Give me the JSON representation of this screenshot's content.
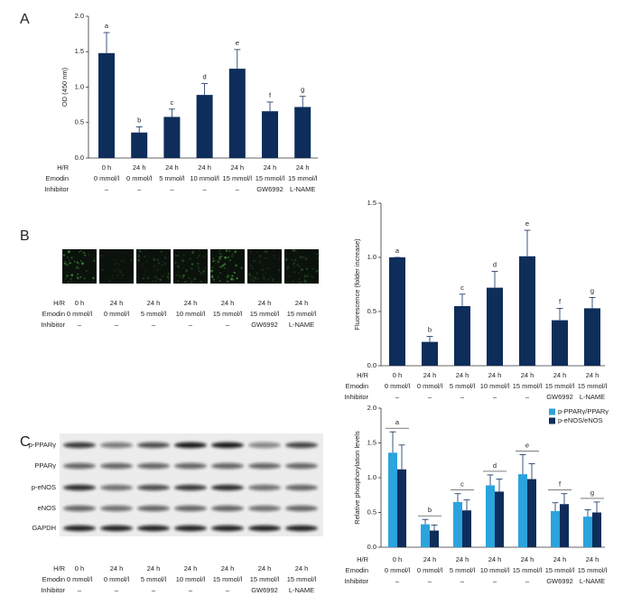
{
  "chart_data": [
    {
      "type": "bar",
      "panel": "A",
      "ylabel": "OD (450 nm)",
      "color": "#0e2d5b",
      "ylim": [
        0,
        2
      ],
      "yticks": [
        {
          "value": 0,
          "label": "0.0"
        },
        0.5,
        {
          "value": 1,
          "label": "1.0"
        },
        1.5,
        {
          "value": 2,
          "label": "2.0"
        }
      ],
      "condition_labels": [
        "H/R",
        "Emodin",
        "Inhibitor"
      ],
      "categories": [
        [
          "0 h",
          "0 mmol/l",
          "–"
        ],
        [
          "24 h",
          "0 mmol/l",
          "–"
        ],
        [
          "24 h",
          "5 mmol/l",
          "–"
        ],
        [
          "24 h",
          "10 mmol/l",
          "–"
        ],
        [
          "24 h",
          "15 mmol/l",
          "–"
        ],
        [
          "24 h",
          "15 mmol/l",
          "GW6992"
        ],
        [
          "24 h",
          "15 mmol/l",
          "L-NAME"
        ]
      ],
      "values": [
        1.48,
        0.36,
        0.58,
        0.89,
        1.26,
        0.66,
        0.72
      ],
      "errors": [
        0.29,
        0.08,
        0.11,
        0.16,
        0.27,
        0.13,
        0.15
      ],
      "annotations": [
        "a",
        "b",
        "c",
        "d",
        "e",
        "f",
        "g"
      ]
    },
    {
      "type": "bar",
      "panel": "B",
      "ylabel": "Fluorescence (folder increase)",
      "color": "#0e2d5b",
      "ylim": [
        0,
        1.5
      ],
      "yticks": [
        {
          "value": 0,
          "label": "0.0"
        },
        0.5,
        {
          "value": 1,
          "label": "1.0"
        },
        1.5
      ],
      "condition_labels": [
        "H/R",
        "Emodin",
        "Inhibitor"
      ],
      "categories": [
        [
          "0 h",
          "0 mmol/l",
          "–"
        ],
        [
          "24 h",
          "0 mmol/l",
          "–"
        ],
        [
          "24 h",
          "5 mmol/l",
          "–"
        ],
        [
          "24 h",
          "10 mmol/l",
          "–"
        ],
        [
          "24 h",
          "15 mmol/l",
          "–"
        ],
        [
          "24 h",
          "15 mmol/l",
          "GW6992"
        ],
        [
          "24 h",
          "15 mmol/l",
          "L-NAME"
        ]
      ],
      "values": [
        1.0,
        0.22,
        0.55,
        0.72,
        1.01,
        0.42,
        0.53
      ],
      "errors": [
        0,
        0.05,
        0.11,
        0.15,
        0.24,
        0.11,
        0.1
      ],
      "annotations": [
        "a",
        "b",
        "c",
        "d",
        "e",
        "f",
        "g"
      ],
      "image_strip": {
        "condition_labels": [
          "H/R",
          "Emodin",
          "Inhibitor"
        ],
        "categories": [
          [
            "0 h",
            "0 mmol/l",
            "–"
          ],
          [
            "24 h",
            "0 mmol/l",
            "–"
          ],
          [
            "24 h",
            "5 mmol/l",
            "–"
          ],
          [
            "24 h",
            "10 mmol/l",
            "–"
          ],
          [
            "24 h",
            "15 mmol/l",
            "–"
          ],
          [
            "24 h",
            "15 mmol/l",
            "GW6992"
          ],
          [
            "24 h",
            "15 mmol/l",
            "L-NAME"
          ]
        ]
      }
    },
    {
      "type": "grouped_bar",
      "panel": "C",
      "ylabel": "Relative phosphorylation levels",
      "legend": "upper right",
      "ylim": [
        0,
        2
      ],
      "yticks": [
        {
          "value": 0,
          "label": "0.0"
        },
        0.5,
        {
          "value": 1,
          "label": "1.0"
        },
        1.5,
        {
          "value": 2,
          "label": "2.0"
        }
      ],
      "condition_labels": [
        "H/R",
        "Emodin",
        "Inhibitor"
      ],
      "categories": [
        [
          "0 h",
          "0 mmol/l",
          "–"
        ],
        [
          "24 h",
          "0 mmol/l",
          "–"
        ],
        [
          "24 h",
          "5 mmol/l",
          "–"
        ],
        [
          "24 h",
          "10 mmol/l",
          "–"
        ],
        [
          "24 h",
          "15 mmol/l",
          "–"
        ],
        [
          "24 h",
          "15 mmol/l",
          "GW6992"
        ],
        [
          "24 h",
          "15 mmol/l",
          "L-NAME"
        ]
      ],
      "series": [
        {
          "name": "p-PPARγ/PPARγ",
          "color": "#2ba3dc",
          "values": [
            1.36,
            0.33,
            0.65,
            0.89,
            1.05,
            0.52,
            0.44
          ],
          "errors": [
            0.3,
            0.07,
            0.12,
            0.15,
            0.28,
            0.12,
            0.1
          ]
        },
        {
          "name": "p-eNOS/eNOS",
          "color": "#0e2d5b",
          "values": [
            1.12,
            0.24,
            0.53,
            0.8,
            0.98,
            0.62,
            0.5
          ],
          "errors": [
            0.35,
            0.08,
            0.15,
            0.18,
            0.22,
            0.15,
            0.15
          ]
        }
      ],
      "annotations": [
        "a",
        "b",
        "c",
        "d",
        "e",
        "f",
        "g"
      ],
      "blot": {
        "bands": [
          "p-PPARγ",
          "PPARγ",
          "p-eNOS",
          "eNOS",
          "GAPDH"
        ],
        "condition_labels": [
          "H/R",
          "Emodin",
          "Inhibitor"
        ],
        "categories": [
          [
            "0 h",
            "0 mmol/l",
            "–"
          ],
          [
            "24 h",
            "0 mmol/l",
            "–"
          ],
          [
            "24 h",
            "5 mmol/l",
            "–"
          ],
          [
            "24 h",
            "10 mmol/l",
            "–"
          ],
          [
            "24 h",
            "15 mmol/l",
            "–"
          ],
          [
            "24 h",
            "15 mmol/l",
            "GW6992"
          ],
          [
            "24 h",
            "15 mmol/l",
            "L-NAME"
          ]
        ]
      }
    }
  ]
}
